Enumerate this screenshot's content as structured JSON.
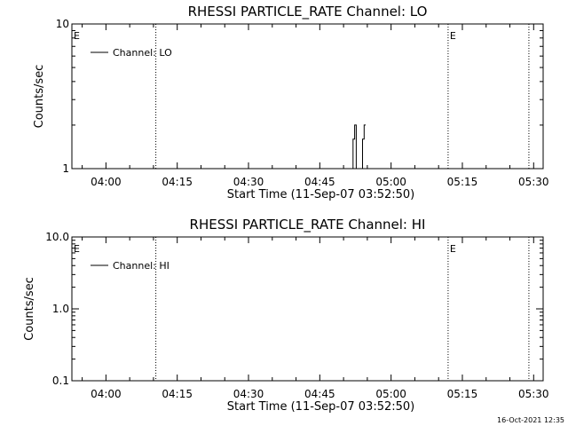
{
  "chart_data": [
    {
      "type": "line",
      "title": "RHESSI PARTICLE_RATE Channel: LO",
      "xlabel": "Start Time (11-Sep-07 03:52:50)",
      "ylabel": "Counts/sec",
      "y_scale": "log",
      "ylim": [
        1,
        10
      ],
      "y_tick_labels": [
        "1",
        "10"
      ],
      "x_range": [
        "03:52:50",
        "05:32:00"
      ],
      "x_tick_labels": [
        "04:00",
        "04:15",
        "04:30",
        "04:45",
        "05:00",
        "05:15",
        "05:30"
      ],
      "legend": {
        "entries": [
          "Channel: LO"
        ],
        "placement": "top-left"
      },
      "event_markers": [
        {
          "time": "04:10:30",
          "label": ""
        },
        {
          "time": "05:12:00",
          "label": "E"
        },
        {
          "time": "05:29:00",
          "label": ""
        }
      ],
      "start_marker_label": "E",
      "series": [
        {
          "name": "Channel: LO",
          "points": [
            [
              "04:52:00",
              1
            ],
            [
              "04:52:00",
              1.6
            ],
            [
              "04:52:20",
              1.6
            ],
            [
              "04:52:20",
              2
            ],
            [
              "04:52:40",
              2
            ],
            [
              "04:52:40",
              1
            ],
            [
              "04:54:00",
              1
            ],
            [
              "04:54:00",
              1.6
            ],
            [
              "04:54:20",
              1.6
            ],
            [
              "04:54:20",
              2
            ],
            [
              "04:54:40",
              2
            ]
          ]
        }
      ]
    },
    {
      "type": "line",
      "title": "RHESSI PARTICLE_RATE Channel: HI",
      "xlabel": "Start Time (11-Sep-07 03:52:50)",
      "ylabel": "Counts/sec",
      "y_scale": "log",
      "ylim": [
        0.1,
        10
      ],
      "y_tick_labels": [
        "0.1",
        "1.0",
        "10.0"
      ],
      "x_range": [
        "03:52:50",
        "05:32:00"
      ],
      "x_tick_labels": [
        "04:00",
        "04:15",
        "04:30",
        "04:45",
        "05:00",
        "05:15",
        "05:30"
      ],
      "legend": {
        "entries": [
          "Channel: HI"
        ],
        "placement": "top-left"
      },
      "event_markers": [
        {
          "time": "04:10:30",
          "label": ""
        },
        {
          "time": "05:12:00",
          "label": "E"
        },
        {
          "time": "05:29:00",
          "label": ""
        }
      ],
      "start_marker_label": "E",
      "series": [
        {
          "name": "Channel: HI",
          "points": []
        }
      ]
    }
  ],
  "footer": {
    "timestamp": "16-Oct-2021 12:35"
  }
}
